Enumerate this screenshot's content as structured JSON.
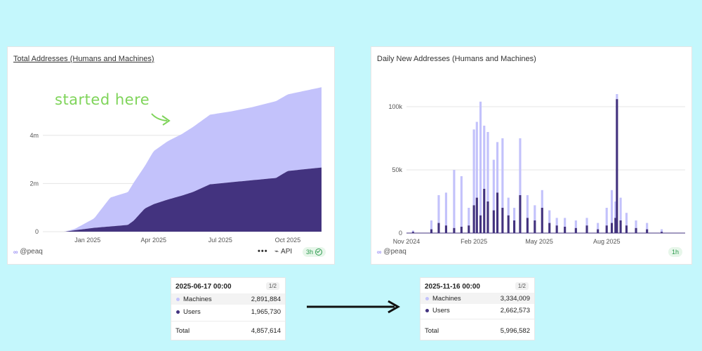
{
  "left_panel": {
    "title": "Total Addresses (Humans and Machines)",
    "annotation": "started here",
    "handle": "@peaq",
    "handle_icon": "link-icon",
    "api_label": "API",
    "freshness": "3h",
    "more_icon": "more-icon"
  },
  "right_panel": {
    "title": "Daily New Addresses (Humans and Machines)",
    "handle": "@peaq",
    "freshness": "1h"
  },
  "tooltip_left": {
    "date": "2025-06-17 00:00",
    "page": "1/2",
    "rows": [
      {
        "label": "Machines",
        "value": "2,891,884"
      },
      {
        "label": "Users",
        "value": "1,965,730"
      }
    ],
    "total_label": "Total",
    "total_value": "4,857,614"
  },
  "tooltip_right": {
    "date": "2025-11-16 00:00",
    "page": "1/2",
    "rows": [
      {
        "label": "Machines",
        "value": "3,334,009"
      },
      {
        "label": "Users",
        "value": "2,662,573"
      }
    ],
    "total_label": "Total",
    "total_value": "5,996,582"
  },
  "colors": {
    "machines": "#c3c2fb",
    "users": "#43337f",
    "background": "#c4f7fc",
    "annotation": "#7fd45a",
    "grid": "#e5e5e5"
  },
  "chart_data": [
    {
      "type": "area",
      "title": "Total Addresses (Humans and Machines)",
      "stacked": true,
      "x_start": "2024-11-01",
      "x_end": "2025-11-16",
      "x_tick_labels": [
        "Jan 2025",
        "Apr 2025",
        "Jul 2025",
        "Oct 2025"
      ],
      "x_tick_dates": [
        "2025-01-01",
        "2025-04-01",
        "2025-07-01",
        "2025-10-01"
      ],
      "y_tick_labels": [
        "0",
        "2m",
        "4m"
      ],
      "y_tick_values": [
        0,
        2000000,
        4000000
      ],
      "ylim": [
        0,
        6500000
      ],
      "grid": true,
      "series": [
        {
          "name": "Users",
          "dates": [
            "2024-11-01",
            "2024-12-01",
            "2024-12-15",
            "2025-01-10",
            "2025-02-10",
            "2025-02-25",
            "2025-03-05",
            "2025-03-20",
            "2025-04-01",
            "2025-04-20",
            "2025-05-10",
            "2025-05-25",
            "2025-06-17",
            "2025-07-15",
            "2025-08-15",
            "2025-09-15",
            "2025-10-01",
            "2025-11-16"
          ],
          "values": [
            0,
            0,
            60000,
            160000,
            240000,
            280000,
            460000,
            960000,
            1140000,
            1330000,
            1500000,
            1650000,
            1965730,
            2050000,
            2140000,
            2230000,
            2520000,
            2662573
          ]
        },
        {
          "name": "Machines",
          "dates": [
            "2024-11-01",
            "2024-12-01",
            "2024-12-15",
            "2025-01-10",
            "2025-02-01",
            "2025-02-25",
            "2025-03-05",
            "2025-03-20",
            "2025-04-01",
            "2025-04-20",
            "2025-05-10",
            "2025-05-25",
            "2025-06-17",
            "2025-07-15",
            "2025-08-15",
            "2025-09-15",
            "2025-10-01",
            "2025-11-16"
          ],
          "values": [
            0,
            0,
            60000,
            390000,
            1200000,
            1360000,
            1580000,
            1760000,
            2200000,
            2420000,
            2560000,
            2700000,
            2891884,
            2940000,
            3040000,
            3190000,
            3180000,
            3334009
          ]
        }
      ]
    },
    {
      "type": "bar",
      "title": "Daily New Addresses (Humans and Machines)",
      "stacked": true,
      "x_start": "2024-11-01",
      "x_end": "2025-11-16",
      "x_tick_labels": [
        "Nov 2024",
        "Feb 2025",
        "May 2025",
        "Aug 2025"
      ],
      "x_tick_dates": [
        "2024-11-01",
        "2025-02-01",
        "2025-05-01",
        "2025-08-01"
      ],
      "y_tick_labels": [
        "0",
        "50k",
        "100k"
      ],
      "y_tick_values": [
        0,
        50000,
        100000
      ],
      "ylim": [
        0,
        125000
      ],
      "grid": true,
      "series": [
        {
          "name": "Users",
          "dates": [
            "2024-11-10",
            "2024-12-05",
            "2024-12-15",
            "2024-12-25",
            "2025-01-05",
            "2025-01-15",
            "2025-01-25",
            "2025-02-01",
            "2025-02-05",
            "2025-02-10",
            "2025-02-15",
            "2025-02-20",
            "2025-02-28",
            "2025-03-05",
            "2025-03-12",
            "2025-03-20",
            "2025-03-28",
            "2025-04-05",
            "2025-04-15",
            "2025-04-25",
            "2025-05-05",
            "2025-05-15",
            "2025-05-25",
            "2025-06-05",
            "2025-06-20",
            "2025-07-05",
            "2025-07-20",
            "2025-08-01",
            "2025-08-08",
            "2025-08-13",
            "2025-08-15",
            "2025-08-20",
            "2025-08-28",
            "2025-09-10",
            "2025-09-25",
            "2025-10-15"
          ],
          "values": [
            1000,
            3000,
            8000,
            6000,
            4000,
            5000,
            6000,
            22000,
            28000,
            14000,
            35000,
            25000,
            18000,
            32000,
            20000,
            14000,
            10000,
            30000,
            12000,
            10000,
            20000,
            8000,
            6000,
            5000,
            4000,
            6000,
            3000,
            6000,
            8000,
            12000,
            106000,
            10000,
            6000,
            4000,
            3000,
            1000
          ]
        },
        {
          "name": "Machines",
          "dates": [
            "2024-11-10",
            "2024-12-05",
            "2024-12-15",
            "2024-12-25",
            "2025-01-05",
            "2025-01-15",
            "2025-01-25",
            "2025-02-01",
            "2025-02-05",
            "2025-02-10",
            "2025-02-15",
            "2025-02-20",
            "2025-02-28",
            "2025-03-05",
            "2025-03-12",
            "2025-03-20",
            "2025-03-28",
            "2025-04-05",
            "2025-04-15",
            "2025-04-25",
            "2025-05-05",
            "2025-05-15",
            "2025-05-25",
            "2025-06-05",
            "2025-06-20",
            "2025-07-05",
            "2025-07-20",
            "2025-08-01",
            "2025-08-08",
            "2025-08-13",
            "2025-08-15",
            "2025-08-20",
            "2025-08-28",
            "2025-09-10",
            "2025-09-25",
            "2025-10-15"
          ],
          "values": [
            1000,
            7000,
            22000,
            26000,
            46000,
            40000,
            14000,
            60000,
            60000,
            90000,
            50000,
            55000,
            40000,
            40000,
            55000,
            14000,
            10000,
            45000,
            18000,
            12000,
            14000,
            10000,
            6000,
            7000,
            6000,
            6000,
            5000,
            14000,
            26000,
            13000,
            4000,
            18000,
            10000,
            6000,
            5000,
            2000
          ]
        }
      ]
    }
  ]
}
